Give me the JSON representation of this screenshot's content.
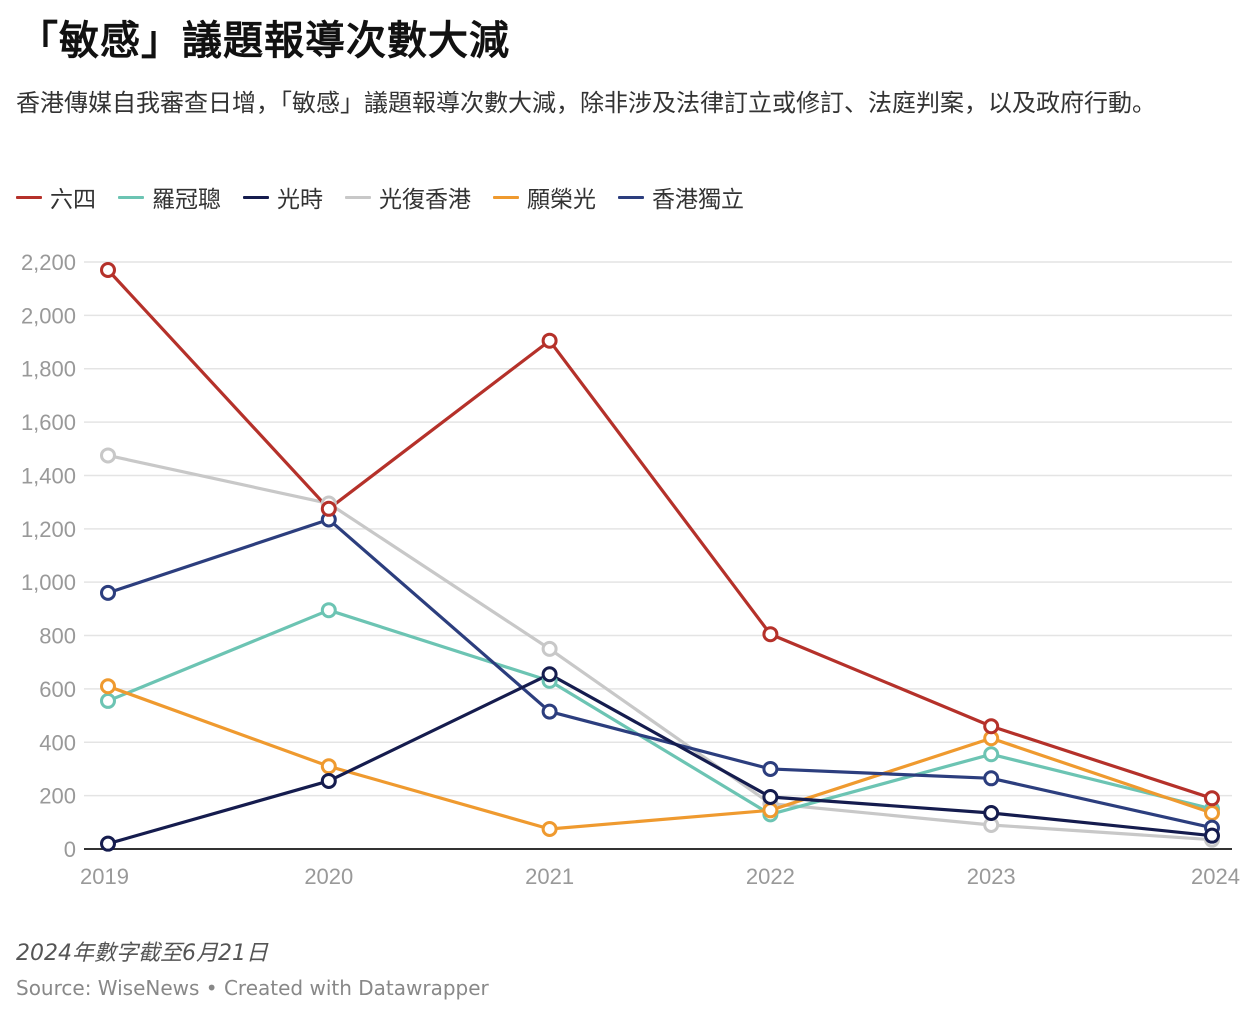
{
  "header": {
    "title": "「敏感」議題報導次數大減",
    "subtitle": "香港傳媒自我審查日增，「敏感」議題報導次數大減，除非涉及法律訂立或修訂、法庭判案，以及政府行動。"
  },
  "footer": {
    "note": "2024年數字截至6月21日",
    "source": "Source: WiseNews • Created with Datawrapper"
  },
  "chart_data": {
    "type": "line",
    "x": [
      2019,
      2020,
      2021,
      2022,
      2023,
      2024
    ],
    "ylim": [
      0,
      2200
    ],
    "yticks": [
      0,
      200,
      400,
      600,
      800,
      1000,
      1200,
      1400,
      1600,
      1800,
      2000,
      2200
    ],
    "grid": true,
    "legend_position": "top-left",
    "series": [
      {
        "name": "六四",
        "color": "#b5312a",
        "values": [
          2170,
          1275,
          1905,
          805,
          460,
          190
        ]
      },
      {
        "name": "羅冠聰",
        "color": "#6cc4b3",
        "values": [
          555,
          895,
          630,
          130,
          355,
          150
        ]
      },
      {
        "name": "光時",
        "color": "#151c4e",
        "values": [
          20,
          255,
          655,
          195,
          135,
          50
        ]
      },
      {
        "name": "光復香港",
        "color": "#c8c8c8",
        "values": [
          1475,
          1295,
          750,
          170,
          90,
          35
        ]
      },
      {
        "name": "願榮光",
        "color": "#ef9a2f",
        "values": [
          610,
          310,
          75,
          145,
          415,
          135
        ]
      },
      {
        "name": "香港獨立",
        "color": "#2c3e7e",
        "values": [
          960,
          1235,
          515,
          300,
          265,
          80
        ]
      }
    ]
  }
}
